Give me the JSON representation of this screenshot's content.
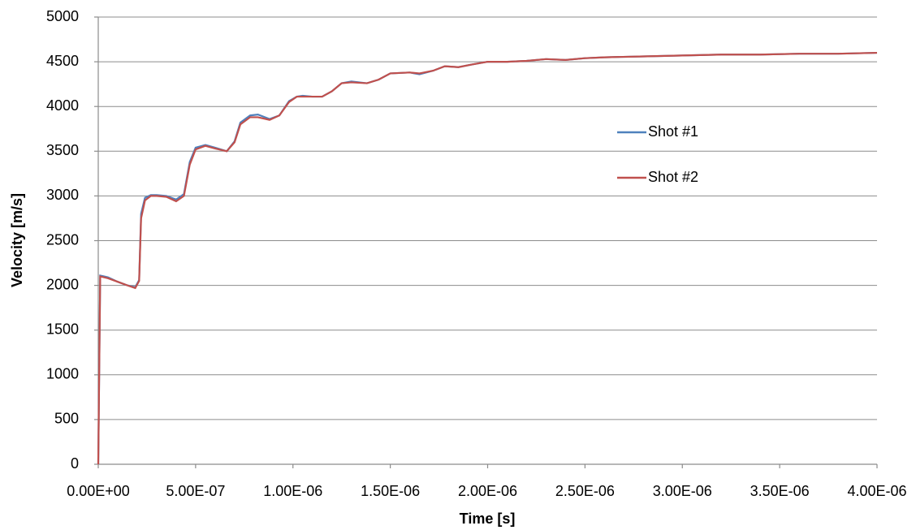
{
  "chart_data": {
    "type": "line",
    "xlabel": "Time [s]",
    "ylabel": "Velocity [m/s]",
    "x": [
      0,
      1e-08,
      5e-08,
      1e-07,
      1.5e-07,
      1.9e-07,
      2.1e-07,
      2.2e-07,
      2.4e-07,
      2.7e-07,
      3e-07,
      3.5e-07,
      4e-07,
      4.4e-07,
      4.7e-07,
      5e-07,
      5.5e-07,
      6e-07,
      6.6e-07,
      7e-07,
      7.3e-07,
      7.8e-07,
      8.2e-07,
      8.8e-07,
      9.3e-07,
      9.8e-07,
      1.02e-06,
      1.05e-06,
      1.1e-06,
      1.15e-06,
      1.2e-06,
      1.25e-06,
      1.3e-06,
      1.38e-06,
      1.44e-06,
      1.5e-06,
      1.6e-06,
      1.65e-06,
      1.72e-06,
      1.78e-06,
      1.85e-06,
      1.92e-06,
      2e-06,
      2.1e-06,
      2.2e-06,
      2.3e-06,
      2.4e-06,
      2.5e-06,
      2.6e-06,
      2.8e-06,
      3e-06,
      3.2e-06,
      3.4e-06,
      3.6e-06,
      3.8e-06,
      4e-06
    ],
    "series": [
      {
        "name": "Shot #1",
        "color": "#4f81bd",
        "values": [
          0,
          2110,
          2090,
          2040,
          2000,
          1980,
          2060,
          2800,
          2980,
          3010,
          3010,
          3000,
          2960,
          3020,
          3380,
          3540,
          3570,
          3540,
          3500,
          3610,
          3820,
          3900,
          3910,
          3860,
          3900,
          4060,
          4110,
          4120,
          4110,
          4110,
          4170,
          4260,
          4280,
          4260,
          4300,
          4370,
          4380,
          4360,
          4400,
          4450,
          4440,
          4470,
          4500,
          4500,
          4510,
          4530,
          4520,
          4540,
          4550,
          4560,
          4570,
          4580,
          4580,
          4590,
          4590,
          4600
        ]
      },
      {
        "name": "Shot #2",
        "color": "#c0504d",
        "values": [
          0,
          2100,
          2080,
          2040,
          2000,
          1970,
          2050,
          2750,
          2950,
          3000,
          3000,
          2990,
          2940,
          3000,
          3350,
          3520,
          3560,
          3530,
          3500,
          3600,
          3800,
          3880,
          3880,
          3850,
          3900,
          4050,
          4110,
          4110,
          4110,
          4110,
          4170,
          4260,
          4270,
          4260,
          4300,
          4370,
          4380,
          4370,
          4400,
          4450,
          4440,
          4470,
          4500,
          4500,
          4510,
          4530,
          4520,
          4540,
          4550,
          4560,
          4570,
          4580,
          4580,
          4590,
          4590,
          4600
        ]
      }
    ],
    "xlim": [
      0,
      4e-06
    ],
    "xticks": [
      {
        "value": 0,
        "label": "0.00E+00"
      },
      {
        "value": 5e-07,
        "label": "5.00E-07"
      },
      {
        "value": 1e-06,
        "label": "1.00E-06"
      },
      {
        "value": 1.5e-06,
        "label": "1.50E-06"
      },
      {
        "value": 2e-06,
        "label": "2.00E-06"
      },
      {
        "value": 2.5e-06,
        "label": "2.50E-06"
      },
      {
        "value": 3e-06,
        "label": "3.00E-06"
      },
      {
        "value": 3.5e-06,
        "label": "3.50E-06"
      },
      {
        "value": 4e-06,
        "label": "4.00E-06"
      }
    ],
    "ylim": [
      0,
      5000
    ],
    "yticks": [
      0,
      500,
      1000,
      1500,
      2000,
      2500,
      3000,
      3500,
      4000,
      4500,
      5000
    ],
    "grid": true,
    "legend": "right"
  }
}
